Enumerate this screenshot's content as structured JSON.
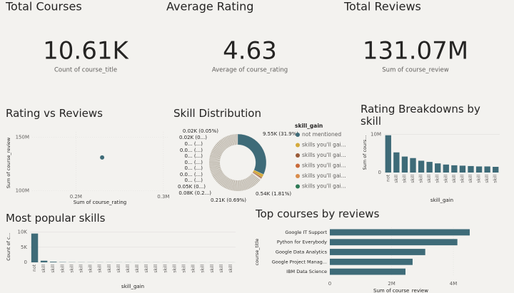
{
  "cards": [
    {
      "title": "Total Courses",
      "value": "10.61K",
      "label": "Count of course_title"
    },
    {
      "title": "Average Rating",
      "value": "4.63",
      "label": "Average of course_rating"
    },
    {
      "title": "Total Reviews",
      "value": "131.07M",
      "label": "Sum of course_review"
    }
  ],
  "chart_data": [
    {
      "type": "scatter",
      "title": "Rating vs Reviews",
      "x_label": "Sum of course_rating",
      "y_label": "Sum of course_review",
      "x": [
        230000
      ],
      "values": [
        131070000
      ],
      "color": "#3e6b78",
      "xlim": [
        150000,
        305000
      ],
      "xticks": [
        {
          "value": 200000,
          "label": "0.2M"
        },
        {
          "value": 300000,
          "label": "0.3M"
        }
      ],
      "ylim": [
        97000000,
        155000000
      ],
      "yticks": [
        {
          "value": 100000000,
          "label": "100M"
        },
        {
          "value": 150000000,
          "label": "150M"
        }
      ],
      "grid": true
    },
    {
      "type": "pie",
      "title": "Skill Distribution",
      "legend_title": "skill_gain",
      "legend": [
        {
          "name": "not mentioned",
          "color": "#3e6b78"
        },
        {
          "name": "skills you'll gai...",
          "color": "#d4aa3c"
        },
        {
          "name": "skills you'll gai...",
          "color": "#9a5a38"
        },
        {
          "name": "skills you'll gai...",
          "color": "#c96a3a"
        },
        {
          "name": "skills you'll gai...",
          "color": "#d98c4c"
        },
        {
          "name": "skills you'll gai...",
          "color": "#2e7a55"
        }
      ],
      "values": [
        31.9,
        1.81,
        0.69,
        0.27,
        0.17,
        0.07,
        0.07,
        0.07,
        0.07,
        0.07,
        0.07,
        0.07,
        0.07,
        0.05
      ],
      "value_labels": [
        "9.55K (31.9%)",
        "0.54K (1.81%)",
        "0.21K (0.69%)",
        "0.08K (0.2...)",
        "0.05K (0...)",
        "0... (...)",
        "0.0... (...)",
        "0... (...)",
        "0... (...)",
        "0... (...)",
        "0.0... (...)",
        "0... (...)",
        "0.02K (0...)",
        "0.02K (0.05%)"
      ],
      "colors": [
        "#3e6b78",
        "#d4aa3c",
        "#9a5a38",
        "#c96a3a",
        "#d98c4c",
        "#2e7a55",
        "#8a9a6a",
        "#b58a6a",
        "#7a8aa0",
        "#c8b070",
        "#8f7a9a",
        "#a0a0a0",
        "#b0b8c0",
        "#9aa8b0"
      ]
    },
    {
      "type": "bar",
      "title": "Rating Breakdowns by skill",
      "x_label": "skill_gain",
      "y_label": "Sum of cours...",
      "color": "#3e6b78",
      "categories": [
        "not",
        "skill",
        "skill",
        "skill",
        "skill",
        "skill",
        "skill",
        "skill",
        "skill",
        "skill",
        "skill",
        "skill",
        "skill",
        "skill"
      ],
      "values": [
        9800000,
        5300000,
        4200000,
        3800000,
        3100000,
        2800000,
        2400000,
        2100000,
        1900000,
        1800000,
        1700000,
        1600000,
        1600000,
        1500000
      ],
      "ylim": [
        0,
        10500000
      ],
      "yticks": [
        0,
        {
          "value": 10000000,
          "label": "10M"
        }
      ]
    },
    {
      "type": "bar",
      "title": "Most popular skills",
      "x_label": "skill_gain",
      "y_label": "Count of c...",
      "color": "#3e6b78",
      "categories": [
        "not",
        "skill",
        "skill",
        "skill",
        "skill",
        "skill",
        "skill",
        "skill",
        "skill",
        "skill",
        "skill",
        "skill",
        "skill",
        "skill",
        "skill",
        "skill",
        "skill",
        "skill",
        "skill",
        "skill",
        "skill",
        "skill"
      ],
      "values": [
        9550,
        540,
        210,
        80,
        50,
        40,
        35,
        30,
        30,
        25,
        25,
        22,
        20,
        20,
        20,
        18,
        18,
        16,
        15,
        15,
        14,
        12
      ],
      "ylim": [
        0,
        10400
      ],
      "yticks": [
        0,
        {
          "value": 5000,
          "label": "5K"
        },
        {
          "value": 10000,
          "label": "10K"
        }
      ]
    },
    {
      "type": "hbar",
      "title": "Top courses by reviews",
      "x_label": "Sum of course_review",
      "y_label": "course_title",
      "color": "#3e6b78",
      "categories": [
        "Google IT Support",
        "Python for Everybody",
        "Google Data Analytics",
        "Google Project Manag...",
        "IBM Data Science"
      ],
      "values": [
        4530000,
        4130000,
        3090000,
        2680000,
        2450000
      ],
      "xlim": [
        0,
        4600000
      ],
      "xticks": [
        0,
        {
          "value": 2000000,
          "label": "2M"
        },
        {
          "value": 4000000,
          "label": "4M"
        }
      ]
    }
  ]
}
